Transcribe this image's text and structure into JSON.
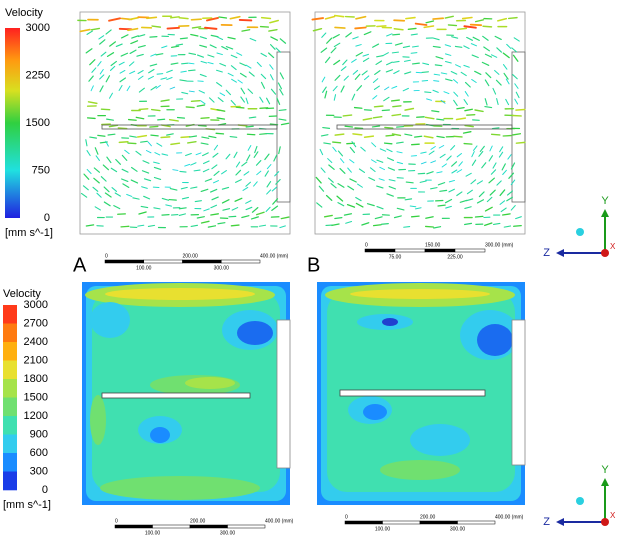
{
  "legend_top": {
    "title": "Velocity",
    "ticks": [
      "3000",
      "2250",
      "1500",
      "750",
      "0"
    ],
    "unit": "[mm s^-1]"
  },
  "legend_bottom": {
    "title": "Velocity",
    "ticks": [
      "3000",
      "2700",
      "2400",
      "2100",
      "1800",
      "1500",
      "1200",
      "900",
      "600",
      "300",
      "0"
    ],
    "unit": "[mm s^-1]"
  },
  "panel_labels": [
    "A",
    "B"
  ],
  "scalebars": [
    {
      "top": [
        "0",
        "200.00",
        "400.00 (mm)"
      ],
      "bottom": [
        "100.00",
        "300.00"
      ]
    },
    {
      "top": [
        "0",
        "150.00",
        "300.00 (mm)"
      ],
      "bottom": [
        "75.00",
        "225.00"
      ]
    },
    {
      "top": [
        "0",
        "200.00",
        "400.00 (mm)"
      ],
      "bottom": [
        "100.00",
        "300.00"
      ]
    },
    {
      "top": [
        "0",
        "200.00",
        "400.00 (mm)"
      ],
      "bottom": [
        "100.00",
        "300.00"
      ]
    }
  ],
  "triads": [
    {
      "y": "Y",
      "z": "Z",
      "x": "X"
    },
    {
      "y": "Y",
      "z": "Z",
      "x": "X"
    }
  ]
}
